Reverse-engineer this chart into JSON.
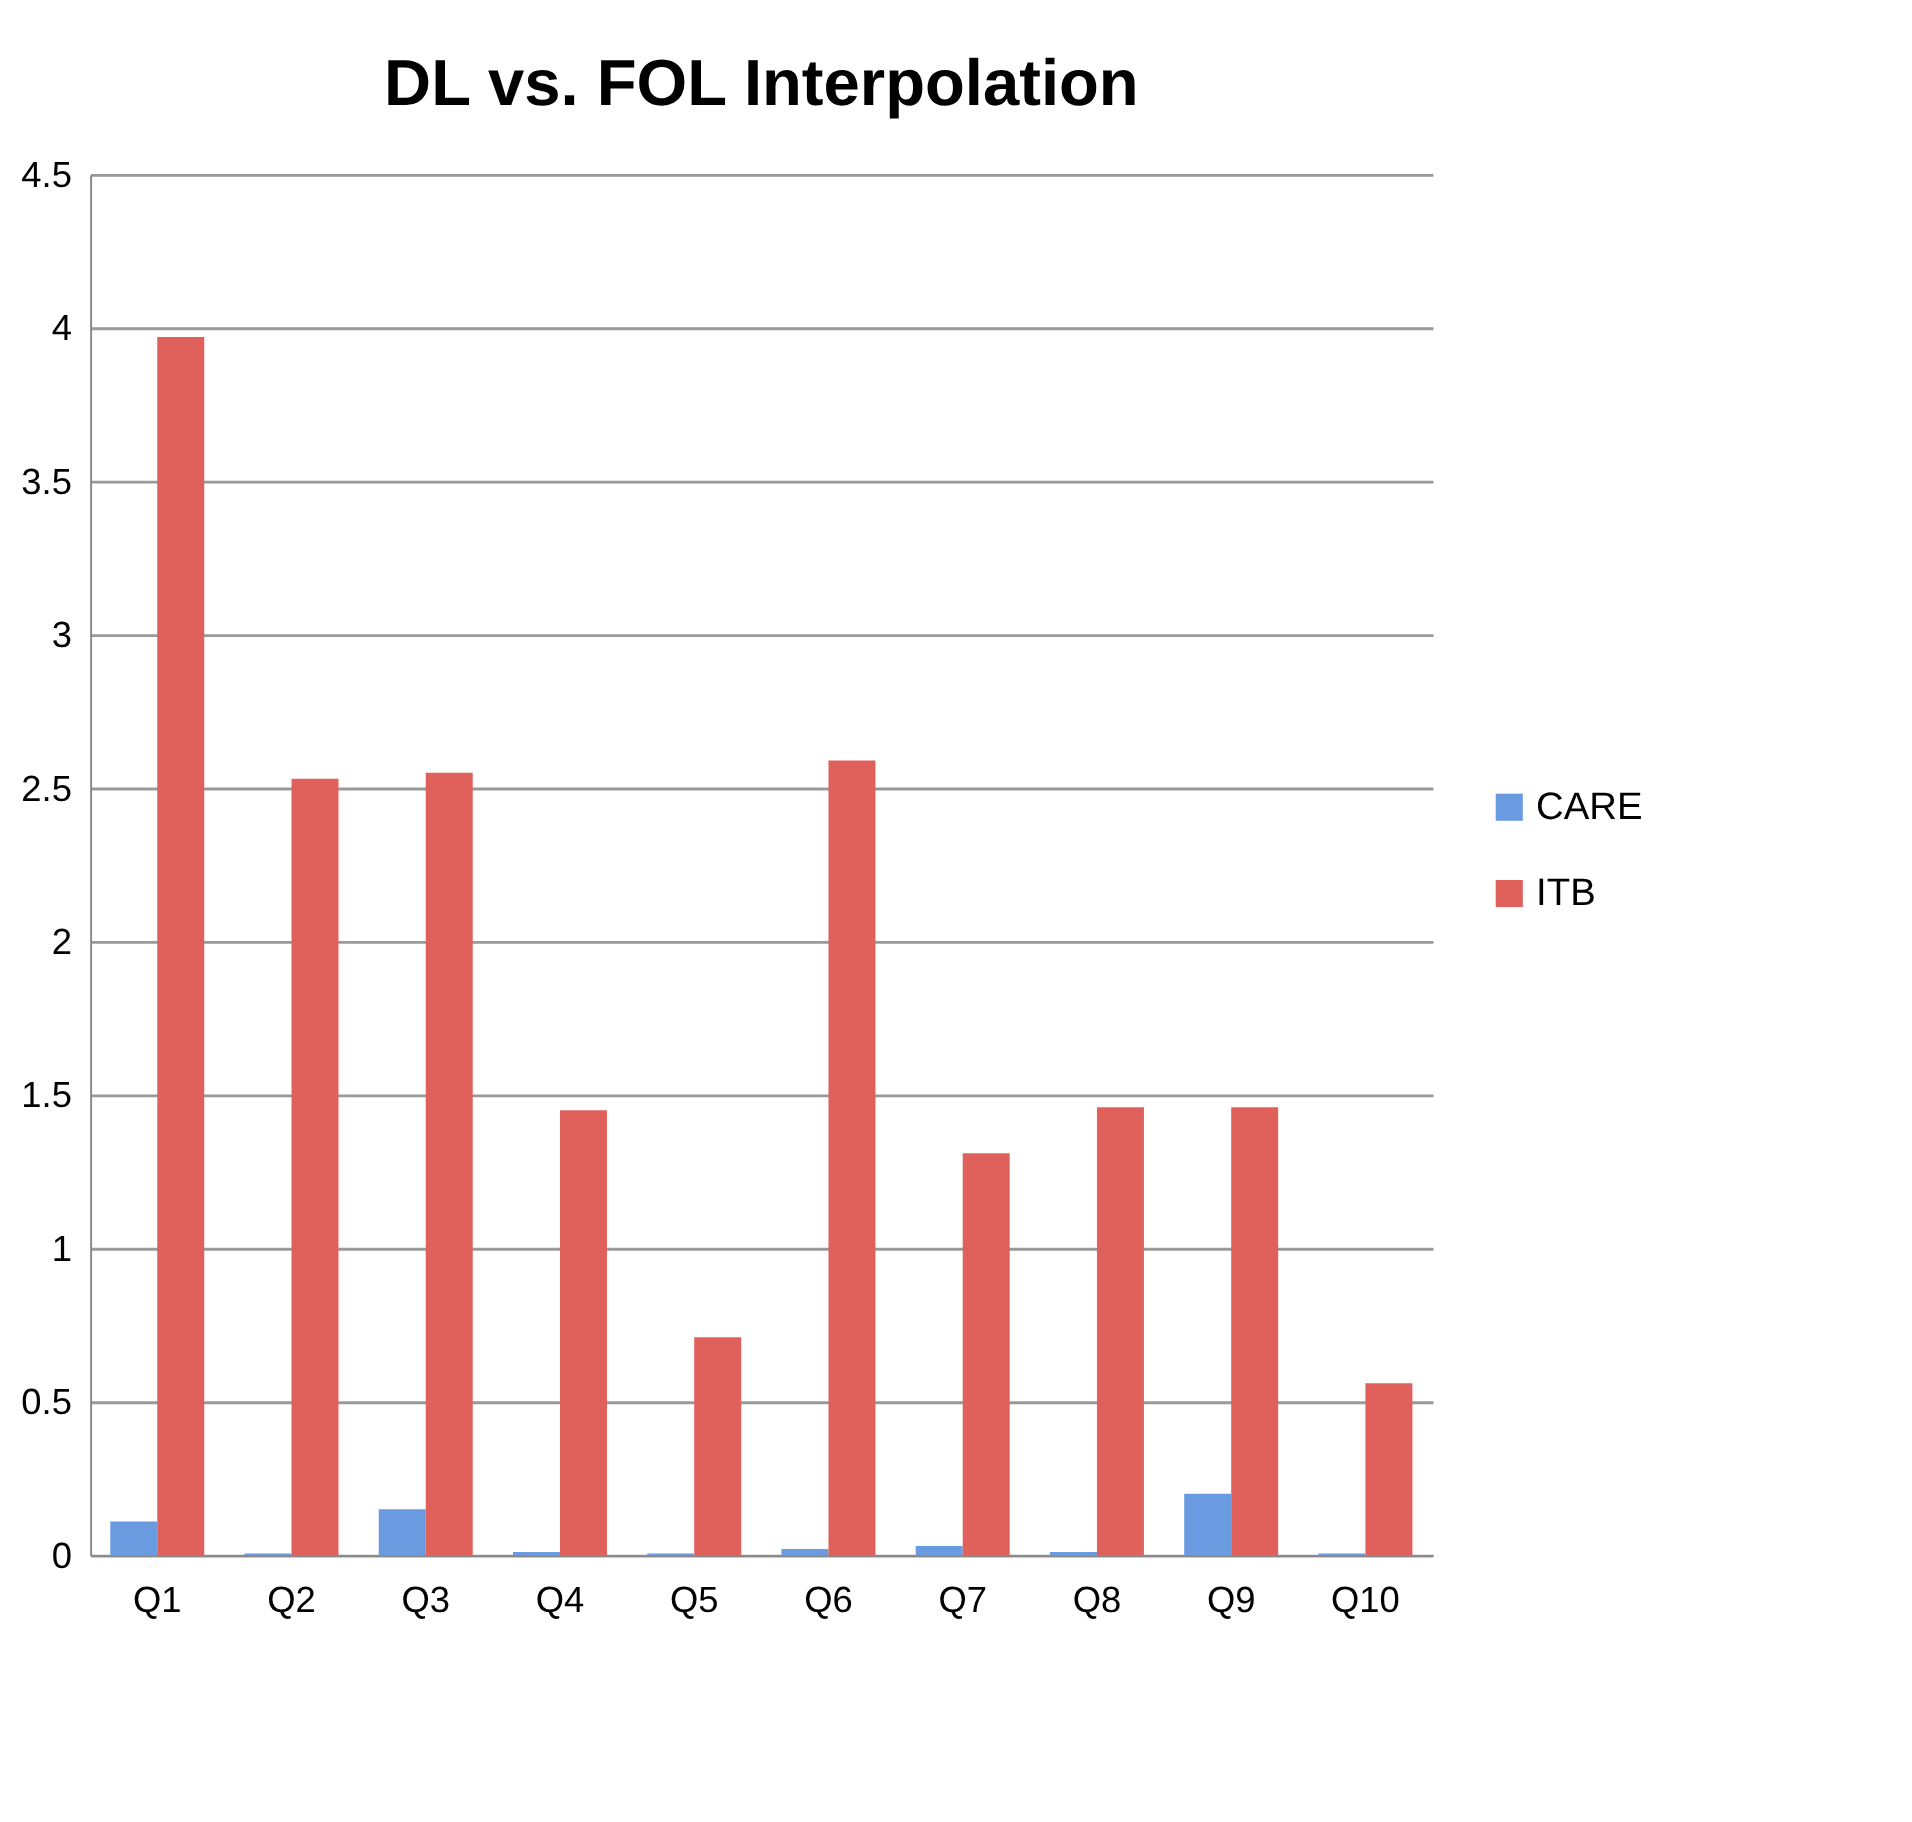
{
  "chart_data": {
    "type": "bar",
    "title": "DL vs. FOL Interpolation",
    "categories": [
      "Q1",
      "Q2",
      "Q3",
      "Q4",
      "Q5",
      "Q6",
      "Q7",
      "Q8",
      "Q9",
      "Q10"
    ],
    "series": [
      {
        "name": "CARE",
        "color": "#6a9be0",
        "values": [
          0.11,
          0.005,
          0.15,
          0.01,
          0.005,
          0.02,
          0.03,
          0.01,
          0.2,
          0.005
        ]
      },
      {
        "name": "ITB",
        "color": "#e0605c",
        "values": [
          3.97,
          2.53,
          2.55,
          1.45,
          0.71,
          2.59,
          1.31,
          1.46,
          1.46,
          0.56
        ]
      }
    ],
    "ylim": [
      0,
      4.5
    ],
    "yticks": [
      0,
      0.5,
      1,
      1.5,
      2,
      2.5,
      3,
      3.5,
      4,
      4.5
    ],
    "grid": "y",
    "legend": "right"
  }
}
